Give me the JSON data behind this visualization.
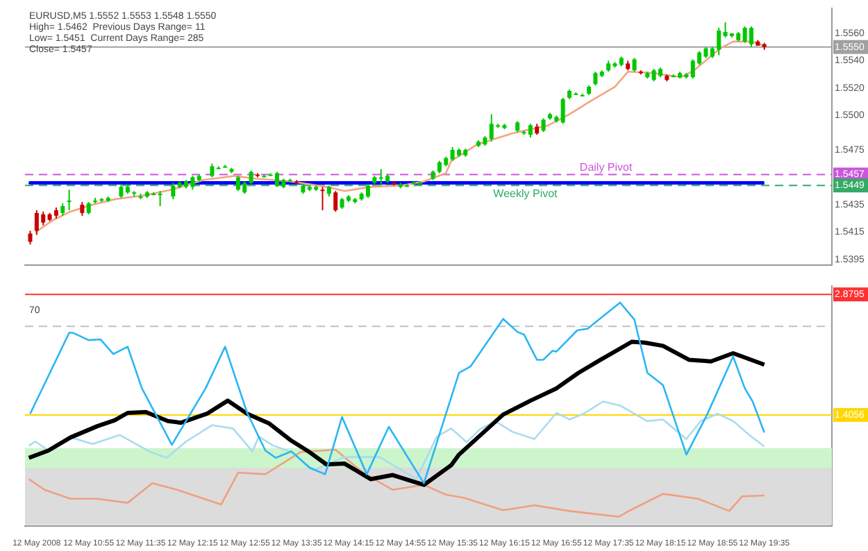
{
  "chart_data": [
    {
      "type": "candlestick",
      "title": "EURUSD,M5 1.5552 1.5553 1.5548 1.5550",
      "annotations": [
        "High= 1.5462  Previous Days Range= 11",
        "Low= 1.5451  Current Days Range= 285",
        "Close= 1.5457"
      ],
      "x": [
        "2008-05-12T10:10",
        "2008-05-12T10:15",
        "2008-05-12T10:20",
        "2008-05-12T10:25",
        "2008-05-12T10:30",
        "2008-05-12T10:35",
        "2008-05-12T10:40",
        "2008-05-12T10:50",
        "2008-05-12T10:55",
        "2008-05-12T11:00",
        "2008-05-12T11:05",
        "2008-05-12T11:10",
        "2008-05-12T11:20",
        "2008-05-12T11:25",
        "2008-05-12T11:30",
        "2008-05-12T11:35",
        "2008-05-12T11:40",
        "2008-05-12T11:45",
        "2008-05-12T11:50",
        "2008-05-12T12:00",
        "2008-05-12T12:05",
        "2008-05-12T12:10",
        "2008-05-12T12:15",
        "2008-05-12T12:20",
        "2008-05-12T12:30",
        "2008-05-12T12:35",
        "2008-05-12T12:40",
        "2008-05-12T12:45",
        "2008-05-12T12:50",
        "2008-05-12T12:55",
        "2008-05-12T13:00",
        "2008-05-12T13:05",
        "2008-05-12T13:10",
        "2008-05-12T13:15",
        "2008-05-12T13:20",
        "2008-05-12T13:25",
        "2008-05-12T13:30",
        "2008-05-12T13:35",
        "2008-05-12T13:40",
        "2008-05-12T13:45",
        "2008-05-12T13:50",
        "2008-05-12T13:55",
        "2008-05-12T14:00",
        "2008-05-12T14:05",
        "2008-05-12T14:10",
        "2008-05-12T14:15",
        "2008-05-12T14:20",
        "2008-05-12T14:25",
        "2008-05-12T14:30",
        "2008-05-12T14:35",
        "2008-05-12T14:40",
        "2008-05-12T14:45",
        "2008-05-12T14:50",
        "2008-05-12T14:55",
        "2008-05-12T15:00",
        "2008-05-12T15:05",
        "2008-05-12T15:10",
        "2008-05-12T15:20",
        "2008-05-12T15:25",
        "2008-05-12T15:30",
        "2008-05-12T15:35",
        "2008-05-12T15:40",
        "2008-05-12T15:45",
        "2008-05-12T15:55",
        "2008-05-12T16:00",
        "2008-05-12T16:05",
        "2008-05-12T16:10",
        "2008-05-12T16:15",
        "2008-05-12T16:25",
        "2008-05-12T16:30",
        "2008-05-12T16:35",
        "2008-05-12T16:40",
        "2008-05-12T16:45",
        "2008-05-12T16:50",
        "2008-05-12T16:55",
        "2008-05-12T17:00",
        "2008-05-12T17:05",
        "2008-05-12T17:10",
        "2008-05-12T17:15",
        "2008-05-12T17:20",
        "2008-05-12T17:25",
        "2008-05-12T17:30",
        "2008-05-12T17:35",
        "2008-05-12T17:40",
        "2008-05-12T17:45",
        "2008-05-12T17:50",
        "2008-05-12T17:55",
        "2008-05-12T18:00",
        "2008-05-12T18:05",
        "2008-05-12T18:10",
        "2008-05-12T18:15",
        "2008-05-12T18:20",
        "2008-05-12T18:25",
        "2008-05-12T18:30",
        "2008-05-12T18:35",
        "2008-05-12T18:40",
        "2008-05-12T18:45",
        "2008-05-12T18:50",
        "2008-05-12T18:55",
        "2008-05-12T19:00",
        "2008-05-12T19:05",
        "2008-05-12T19:10",
        "2008-05-12T19:15",
        "2008-05-12T19:20",
        "2008-05-12T19:25",
        "2008-05-12T19:30",
        "2008-05-12T19:35"
      ],
      "ohlc": [
        [
          1.5414,
          1.5416,
          1.5406,
          1.5408
        ],
        [
          1.5429,
          1.5431,
          1.5413,
          1.5416
        ],
        [
          1.5428,
          1.543,
          1.542,
          1.5422
        ],
        [
          1.5428,
          1.5429,
          1.5423,
          1.5424
        ],
        [
          1.5431,
          1.5433,
          1.5425,
          1.5427
        ],
        [
          1.5429,
          1.5436,
          1.5427,
          1.5434
        ],
        [
          1.5437,
          1.5446,
          1.5431,
          1.5438
        ],
        [
          1.5435,
          1.5437,
          1.5427,
          1.5429
        ],
        [
          1.5429,
          1.5437,
          1.5428,
          1.5436
        ],
        [
          1.5437,
          1.544,
          1.5436,
          1.5438
        ],
        [
          1.5438,
          1.544,
          1.5437,
          1.5439
        ],
        [
          1.5438,
          1.5441,
          1.5437,
          1.544
        ],
        [
          1.5441,
          1.545,
          1.544,
          1.5448
        ],
        [
          1.5444,
          1.545,
          1.5443,
          1.5448
        ],
        [
          1.5443,
          1.5445,
          1.5441,
          1.5444
        ],
        [
          1.5441,
          1.5443,
          1.5439,
          1.5441
        ],
        [
          1.5441,
          1.5445,
          1.544,
          1.5444
        ],
        [
          1.5443,
          1.5444,
          1.5442,
          1.5443
        ],
        [
          1.5443,
          1.5445,
          1.5434,
          1.5443
        ],
        [
          1.5441,
          1.5451,
          1.5439,
          1.5449
        ],
        [
          1.5448,
          1.5452,
          1.5447,
          1.5451
        ],
        [
          1.5448,
          1.5453,
          1.5447,
          1.5452
        ],
        [
          1.5448,
          1.5456,
          1.5446,
          1.5455
        ],
        [
          1.5453,
          1.5457,
          1.5452,
          1.5456
        ],
        [
          1.5456,
          1.5465,
          1.5455,
          1.5463
        ],
        [
          1.5462,
          1.5463,
          1.5461,
          1.5462
        ],
        [
          1.5463,
          1.5464,
          1.5462,
          1.5463
        ],
        [
          1.5459,
          1.5462,
          1.5458,
          1.5461
        ],
        [
          1.5446,
          1.5456,
          1.5445,
          1.5455
        ],
        [
          1.5444,
          1.5452,
          1.5443,
          1.5451
        ],
        [
          1.5451,
          1.546,
          1.545,
          1.5459
        ],
        [
          1.5457,
          1.5458,
          1.5455,
          1.5456
        ],
        [
          1.5456,
          1.5457,
          1.5455,
          1.5456
        ],
        [
          1.5456,
          1.5458,
          1.5456,
          1.5457
        ],
        [
          1.5449,
          1.5459,
          1.5448,
          1.5458
        ],
        [
          1.5448,
          1.5454,
          1.5447,
          1.5453
        ],
        [
          1.5453,
          1.5454,
          1.5452,
          1.5453
        ],
        [
          1.5452,
          1.5453,
          1.545,
          1.5451
        ],
        [
          1.5444,
          1.545,
          1.5443,
          1.5449
        ],
        [
          1.5446,
          1.5449,
          1.5445,
          1.5448
        ],
        [
          1.5446,
          1.5449,
          1.5445,
          1.5448
        ],
        [
          1.5446,
          1.5448,
          1.5431,
          1.5445
        ],
        [
          1.5443,
          1.5449,
          1.5441,
          1.5448
        ],
        [
          1.5444,
          1.5445,
          1.543,
          1.5431
        ],
        [
          1.5433,
          1.544,
          1.5432,
          1.5439
        ],
        [
          1.5438,
          1.5442,
          1.5437,
          1.5441
        ],
        [
          1.5437,
          1.544,
          1.5436,
          1.5439
        ],
        [
          1.5439,
          1.5444,
          1.5438,
          1.5443
        ],
        [
          1.5441,
          1.545,
          1.544,
          1.5449
        ],
        [
          1.5451,
          1.5456,
          1.545,
          1.5455
        ],
        [
          1.5455,
          1.5461,
          1.5449,
          1.5455
        ],
        [
          1.5452,
          1.5457,
          1.5451,
          1.5456
        ],
        [
          1.5451,
          1.5452,
          1.5449,
          1.545
        ],
        [
          1.5448,
          1.5451,
          1.5447,
          1.545
        ],
        [
          1.5449,
          1.545,
          1.5448,
          1.5449
        ],
        [
          1.5451,
          1.5452,
          1.545,
          1.5451
        ],
        [
          1.5451,
          1.5452,
          1.5449,
          1.5451
        ],
        [
          1.5454,
          1.546,
          1.5453,
          1.5459
        ],
        [
          1.5459,
          1.5467,
          1.5458,
          1.5466
        ],
        [
          1.5464,
          1.547,
          1.5463,
          1.5469
        ],
        [
          1.5468,
          1.5477,
          1.5467,
          1.5475
        ],
        [
          1.5471,
          1.5476,
          1.547,
          1.5475
        ],
        [
          1.5471,
          1.5476,
          1.547,
          1.5475
        ],
        [
          1.5478,
          1.5482,
          1.5477,
          1.5481
        ],
        [
          1.5479,
          1.5485,
          1.5478,
          1.5484
        ],
        [
          1.5483,
          1.5501,
          1.5481,
          1.5494
        ],
        [
          1.5492,
          1.5494,
          1.5491,
          1.5493
        ],
        [
          1.5491,
          1.5494,
          1.549,
          1.5493
        ],
        [
          1.5489,
          1.5496,
          1.5488,
          1.5495
        ],
        [
          1.5488,
          1.5489,
          1.5486,
          1.5488
        ],
        [
          1.5486,
          1.5494,
          1.5484,
          1.5493
        ],
        [
          1.5492,
          1.5494,
          1.5486,
          1.5487
        ],
        [
          1.5489,
          1.5498,
          1.5488,
          1.5497
        ],
        [
          1.5498,
          1.5502,
          1.5497,
          1.5501
        ],
        [
          1.5496,
          1.55,
          1.5495,
          1.5499
        ],
        [
          1.5495,
          1.5513,
          1.5494,
          1.5512
        ],
        [
          1.5513,
          1.5519,
          1.5512,
          1.5518
        ],
        [
          1.5516,
          1.5517,
          1.5515,
          1.5516
        ],
        [
          1.5515,
          1.5516,
          1.5514,
          1.5515
        ],
        [
          1.5516,
          1.5522,
          1.5515,
          1.5521
        ],
        [
          1.5523,
          1.5532,
          1.5522,
          1.5531
        ],
        [
          1.5529,
          1.5533,
          1.5528,
          1.5532
        ],
        [
          1.5533,
          1.554,
          1.5532,
          1.5538
        ],
        [
          1.5536,
          1.5539,
          1.5535,
          1.5538
        ],
        [
          1.5537,
          1.5543,
          1.5536,
          1.5542
        ],
        [
          1.5538,
          1.554,
          1.5533,
          1.5534
        ],
        [
          1.5533,
          1.5542,
          1.5532,
          1.5541
        ],
        [
          1.5532,
          1.5533,
          1.553,
          1.5531
        ],
        [
          1.5528,
          1.5532,
          1.5527,
          1.5531
        ],
        [
          1.5526,
          1.5534,
          1.5525,
          1.5533
        ],
        [
          1.5529,
          1.5535,
          1.5528,
          1.5534
        ],
        [
          1.5529,
          1.553,
          1.5525,
          1.5526
        ],
        [
          1.5529,
          1.553,
          1.5528,
          1.5529
        ],
        [
          1.5528,
          1.5532,
          1.5527,
          1.5531
        ],
        [
          1.5528,
          1.5531,
          1.5527,
          1.553
        ],
        [
          1.5528,
          1.5541,
          1.5527,
          1.554
        ],
        [
          1.5538,
          1.5547,
          1.5537,
          1.5546
        ],
        [
          1.5543,
          1.555,
          1.5542,
          1.5549
        ],
        [
          1.5543,
          1.555,
          1.5542,
          1.5549
        ],
        [
          1.5548,
          1.5564,
          1.5544,
          1.5562
        ],
        [
          1.5558,
          1.5568,
          1.5557,
          1.5561
        ],
        [
          1.5558,
          1.556,
          1.5557,
          1.556
        ],
        [
          1.5555,
          1.5561,
          1.5554,
          1.556
        ],
        [
          1.5554,
          1.5565,
          1.5553,
          1.5564
        ],
        [
          1.5552,
          1.5565,
          1.555,
          1.5564
        ],
        [
          1.5554,
          1.5555,
          1.5551,
          1.5551
        ],
        [
          1.5552,
          1.5553,
          1.5548,
          1.555
        ]
      ],
      "series": [
        {
          "type": "line",
          "color": "#f4a582",
          "x": [
            "2008-05-12T10:14",
            "2008-05-12T10:28",
            "2008-05-12T10:41",
            "2008-05-12T10:58",
            "2008-05-12T11:15",
            "2008-05-12T11:39",
            "2008-05-12T11:59",
            "2008-05-12T12:23",
            "2008-05-12T12:47",
            "2008-05-12T13:04",
            "2008-05-12T13:31",
            "2008-05-12T13:58",
            "2008-05-12T14:12",
            "2008-05-12T14:32",
            "2008-05-12T14:56",
            "2008-05-12T15:13",
            "2008-05-12T15:30",
            "2008-05-12T15:34",
            "2008-05-12T15:54",
            "2008-05-12T16:21",
            "2008-05-12T16:49",
            "2008-05-12T17:05",
            "2008-05-12T17:22",
            "2008-05-12T17:40",
            "2008-05-12T17:50",
            "2008-05-12T18:10",
            "2008-05-12T18:31",
            "2008-05-12T18:41",
            "2008-05-12T18:51",
            "2008-05-12T19:01",
            "2008-05-12T19:11",
            "2008-05-12T19:25",
            "2008-05-12T19:35"
          ],
          "values": [
            1.5415,
            1.5424,
            1.543,
            1.5435,
            1.5439,
            1.5442,
            1.5446,
            1.5453,
            1.5456,
            1.5454,
            1.5452,
            1.5448,
            1.5445,
            1.5448,
            1.5449,
            1.5452,
            1.5458,
            1.5467,
            1.5479,
            1.5487,
            1.5493,
            1.5501,
            1.5511,
            1.5521,
            1.5532,
            1.5531,
            1.5528,
            1.5533,
            1.5541,
            1.5549,
            1.5554,
            1.5554,
            1.5551
          ]
        },
        {
          "type": "step",
          "color": "#0000ff",
          "x": [
            "2008-05-12T10:10",
            "2008-05-12T17:15",
            "2008-05-12T19:35"
          ],
          "values": [
            1.545,
            1.5451,
            1.5451
          ]
        }
      ],
      "xlim": [
        "2008-05-12T10:06",
        "2008-05-12T20:27"
      ],
      "ylim": [
        1.5391,
        1.5578
      ],
      "yticks": [
        {
          "value": 1.556,
          "label": "1.5560"
        },
        {
          "value": 1.555,
          "label": "1.5550"
        },
        {
          "value": 1.554,
          "label": "1.5540"
        },
        {
          "value": 1.552,
          "label": "1.5520"
        },
        {
          "value": 1.55,
          "label": "1.5500"
        },
        1.5475,
        1.5457,
        1.5449,
        1.5435,
        1.5415,
        1.5395
      ],
      "ref_lines": [
        {
          "axis": "y",
          "value": 1.555,
          "color": "#a0a0a0"
        },
        {
          "axis": "y",
          "value": 1.5457,
          "label": "Daily Pivot",
          "color": "#cc55dd",
          "line_style": "dashed"
        },
        {
          "axis": "y",
          "value": 1.5449,
          "label": "Weekly Pivot",
          "color": "#33aa66",
          "line_style": "dashed"
        }
      ],
      "tick_labels": "y"
    },
    {
      "type": "line",
      "series": [
        {
          "color": "#29b6f6",
          "x": [
            "2008-05-12T10:10",
            "2008-05-12T10:40",
            "2008-05-12T10:43",
            "2008-05-12T10:55",
            "2008-05-12T11:04",
            "2008-05-12T11:14",
            "2008-05-12T11:25",
            "2008-05-12T11:36",
            "2008-05-12T11:59",
            "2008-05-12T12:25",
            "2008-05-12T12:40",
            "2008-05-12T12:57",
            "2008-05-12T13:11",
            "2008-05-12T13:19",
            "2008-05-12T13:31",
            "2008-05-12T13:45",
            "2008-05-12T13:57",
            "2008-05-12T14:10",
            "2008-05-12T14:29",
            "2008-05-12T14:46",
            "2008-05-12T15:13",
            "2008-05-12T15:40",
            "2008-05-12T15:49",
            "2008-05-12T16:14",
            "2008-05-12T16:25",
            "2008-05-12T16:30",
            "2008-05-12T16:40",
            "2008-05-12T16:45",
            "2008-05-12T16:52",
            "2008-05-12T16:55",
            "2008-05-12T17:11",
            "2008-05-12T17:19",
            "2008-05-12T17:26",
            "2008-05-12T17:44",
            "2008-05-12T17:55",
            "2008-05-12T18:05",
            "2008-05-12T18:17",
            "2008-05-12T18:35",
            "2008-05-12T18:51",
            "2008-05-12T19:11",
            "2008-05-12T19:20",
            "2008-05-12T19:26",
            "2008-05-12T19:35"
          ],
          "values": [
            1.42,
            2.41,
            2.41,
            2.32,
            2.33,
            2.15,
            2.24,
            1.73,
            1.04,
            1.73,
            2.24,
            1.43,
            0.97,
            0.88,
            0.96,
            0.76,
            0.68,
            1.38,
            0.68,
            1.26,
            0.57,
            1.92,
            2.0,
            2.58,
            2.42,
            2.39,
            2.08,
            2.08,
            2.19,
            2.18,
            2.44,
            2.46,
            2.55,
            2.78,
            2.57,
            1.92,
            1.77,
            0.92,
            1.41,
            2.12,
            1.73,
            1.57,
            1.19
          ]
        },
        {
          "color": "#000000",
          "x": [
            "2008-05-12T10:09",
            "2008-05-12T10:24",
            "2008-05-12T10:41",
            "2008-05-12T11:02",
            "2008-05-12T11:15",
            "2008-05-12T11:25",
            "2008-05-12T11:39",
            "2008-05-12T11:56",
            "2008-05-12T12:06",
            "2008-05-12T12:26",
            "2008-05-12T12:42",
            "2008-05-12T12:57",
            "2008-05-12T13:14",
            "2008-05-12T13:31",
            "2008-05-12T13:45",
            "2008-05-12T13:58",
            "2008-05-12T14:12",
            "2008-05-12T14:32",
            "2008-05-12T14:49",
            "2008-05-12T15:03",
            "2008-05-12T15:13",
            "2008-05-12T15:34",
            "2008-05-12T15:40",
            "2008-05-12T16:14",
            "2008-05-12T16:35",
            "2008-05-12T16:55",
            "2008-05-12T17:12",
            "2008-05-12T17:29",
            "2008-05-12T17:53",
            "2008-05-12T18:03",
            "2008-05-12T18:17",
            "2008-05-12T18:37",
            "2008-05-12T18:54",
            "2008-05-12T19:11",
            "2008-05-12T19:35"
          ],
          "values": [
            0.88,
            0.97,
            1.13,
            1.27,
            1.34,
            1.43,
            1.44,
            1.33,
            1.31,
            1.42,
            1.58,
            1.42,
            1.3,
            1.09,
            0.95,
            0.8,
            0.81,
            0.62,
            0.67,
            0.6,
            0.55,
            0.79,
            0.92,
            1.41,
            1.58,
            1.73,
            1.92,
            2.08,
            2.3,
            2.29,
            2.25,
            2.08,
            2.06,
            2.16,
            2.02
          ]
        },
        {
          "color": "#a8dcef",
          "x": [
            "2008-05-12T10:09",
            "2008-05-12T10:14",
            "2008-05-12T10:24",
            "2008-05-12T10:41",
            "2008-05-12T10:58",
            "2008-05-12T11:19",
            "2008-05-12T11:29",
            "2008-05-12T11:43",
            "2008-05-12T11:55",
            "2008-05-12T12:10",
            "2008-05-12T12:30",
            "2008-05-12T12:46",
            "2008-05-12T13:01",
            "2008-05-12T13:06",
            "2008-05-12T13:17",
            "2008-05-12T13:31",
            "2008-05-12T13:48",
            "2008-05-12T14:12",
            "2008-05-12T14:39",
            "2008-05-12T15:07",
            "2008-05-12T15:23",
            "2008-05-12T15:34",
            "2008-05-12T15:46",
            "2008-05-12T15:56",
            "2008-05-12T16:08",
            "2008-05-12T16:21",
            "2008-05-12T16:38",
            "2008-05-12T16:55",
            "2008-05-12T17:05",
            "2008-05-12T17:16",
            "2008-05-12T17:31",
            "2008-05-12T17:44",
            "2008-05-12T18:05",
            "2008-05-12T18:17",
            "2008-05-12T18:35",
            "2008-05-12T18:46",
            "2008-05-12T18:59",
            "2008-05-12T19:11",
            "2008-05-12T19:25",
            "2008-05-12T19:35"
          ],
          "values": [
            1.03,
            1.08,
            0.97,
            1.13,
            1.05,
            1.16,
            1.07,
            0.95,
            0.88,
            1.08,
            1.28,
            1.24,
            0.96,
            1.14,
            1.03,
            0.95,
            0.73,
            0.89,
            0.89,
            0.62,
            1.14,
            1.24,
            1.07,
            1.23,
            1.33,
            1.2,
            1.11,
            1.43,
            1.35,
            1.42,
            1.57,
            1.52,
            1.33,
            1.35,
            1.11,
            1.33,
            1.42,
            1.33,
            1.14,
            1.02
          ]
        },
        {
          "color": "#f0a080",
          "x": [
            "2008-05-12T10:09",
            "2008-05-12T10:21",
            "2008-05-12T10:41",
            "2008-05-12T11:02",
            "2008-05-12T11:25",
            "2008-05-12T11:44",
            "2008-05-12T12:03",
            "2008-05-12T12:37",
            "2008-05-12T12:50",
            "2008-05-12T13:11",
            "2008-05-12T13:38",
            "2008-05-12T14:05",
            "2008-05-12T14:26",
            "2008-05-12T14:49",
            "2008-05-12T15:13",
            "2008-05-12T15:30",
            "2008-05-12T15:44",
            "2008-05-12T16:14",
            "2008-05-12T16:38",
            "2008-05-12T17:05",
            "2008-05-12T17:43",
            "2008-05-12T17:52",
            "2008-05-12T18:17",
            "2008-05-12T18:44",
            "2008-05-12T19:08",
            "2008-05-12T19:18",
            "2008-05-12T19:35"
          ],
          "values": [
            0.62,
            0.49,
            0.38,
            0.38,
            0.33,
            0.57,
            0.49,
            0.31,
            0.7,
            0.68,
            0.95,
            0.98,
            0.7,
            0.49,
            0.55,
            0.43,
            0.39,
            0.24,
            0.3,
            0.23,
            0.16,
            0.24,
            0.44,
            0.38,
            0.23,
            0.41,
            0.42
          ]
        }
      ],
      "xlim": [
        "2008-05-12T10:06",
        "2008-05-12T20:27"
      ],
      "ylim": [
        0.05,
        2.98
      ],
      "yticks": [
        2.8795,
        1.4056
      ],
      "annotations": [
        "70"
      ],
      "xticks": [
        {
          "value": "2008-05-12T10:15",
          "label": "12 May 2008"
        },
        {
          "value": "2008-05-12T10:55",
          "label": "12 May 10:55"
        },
        {
          "value": "2008-05-12T11:35",
          "label": "12 May 11:35"
        },
        {
          "value": "2008-05-12T12:15",
          "label": "12 May 12:15"
        },
        {
          "value": "2008-05-12T12:55",
          "label": "12 May 12:55"
        },
        {
          "value": "2008-05-12T13:35",
          "label": "12 May 13:35"
        },
        {
          "value": "2008-05-12T14:15",
          "label": "12 May 14:15"
        },
        {
          "value": "2008-05-12T14:55",
          "label": "12 May 14:55"
        },
        {
          "value": "2008-05-12T15:35",
          "label": "12 May 15:35"
        },
        {
          "value": "2008-05-12T16:15",
          "label": "12 May 16:15"
        },
        {
          "value": "2008-05-12T16:55",
          "label": "12 May 16:55"
        },
        {
          "value": "2008-05-12T17:35",
          "label": "12 May 17:35"
        },
        {
          "value": "2008-05-12T18:15",
          "label": "12 May 18:15"
        },
        {
          "value": "2008-05-12T18:55",
          "label": "12 May 18:55"
        },
        {
          "value": "2008-05-12T19:35",
          "label": "12 May 19:35"
        }
      ],
      "ref_lines": [
        {
          "axis": "y",
          "value": 2.8795,
          "color": "#ff3030"
        },
        {
          "axis": "y",
          "value": 2.49,
          "color": "#c0c0c0",
          "line_style": "dashed"
        },
        {
          "axis": "y",
          "value": 1.4056,
          "color": "#ffd700"
        }
      ],
      "bands": [
        {
          "axis": "y",
          "from": 0.76,
          "to": 1.0,
          "color": "#ccf5cc"
        },
        {
          "axis": "y",
          "from": 0.06,
          "to": 0.76,
          "color": "#dcdcdc"
        }
      ]
    }
  ]
}
